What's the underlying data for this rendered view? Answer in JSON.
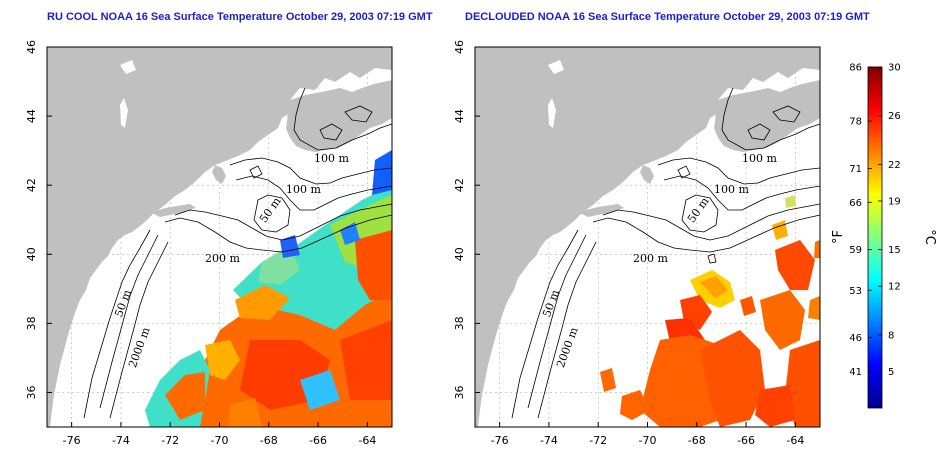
{
  "maps": [
    {
      "title": "RU COOL NOAA 16 Sea Surface Temperature October 29, 2003 07:19 GMT",
      "name": "raw-sst-map",
      "x_ticks": [
        "-76",
        "-74",
        "-72",
        "-70",
        "-68",
        "-66",
        "-64"
      ],
      "y_ticks": [
        "46",
        "44",
        "42",
        "40",
        "38",
        "36"
      ],
      "contour_labels": [
        "100 m",
        "100 m",
        "50 m",
        "200 m",
        "50 m",
        "2000 m"
      ]
    },
    {
      "title": "DECLOUDED NOAA 16 Sea Surface Temperature October 29, 2003 07:19 GMT",
      "name": "declouded-sst-map",
      "x_ticks": [
        "-76",
        "-74",
        "-72",
        "-70",
        "-68",
        "-66",
        "-64"
      ],
      "y_ticks": [
        "46",
        "44",
        "42",
        "40",
        "38",
        "36"
      ],
      "contour_labels": [
        "100 m",
        "100 m",
        "50 m",
        "200 m",
        "50 m",
        "2000 m"
      ]
    }
  ],
  "colorbar": {
    "fahrenheit_unit": "°F",
    "celsius_unit": "°C",
    "fahrenheit_ticks": [
      "86",
      "78",
      "71",
      "66",
      "59",
      "53",
      "46",
      "41"
    ],
    "celsius_ticks": [
      "30",
      "26",
      "22",
      "19",
      "15",
      "12",
      "8",
      "5"
    ],
    "colors": [
      "#00008f",
      "#0000ff",
      "#0080ff",
      "#00ffff",
      "#80ff80",
      "#ffff00",
      "#ff8000",
      "#ff0000",
      "#800000"
    ]
  },
  "colors": {
    "land": "#c0c0c0",
    "ocean": "#ffffff",
    "title": "#1d1dd0",
    "grid": "#b0b0b0"
  }
}
